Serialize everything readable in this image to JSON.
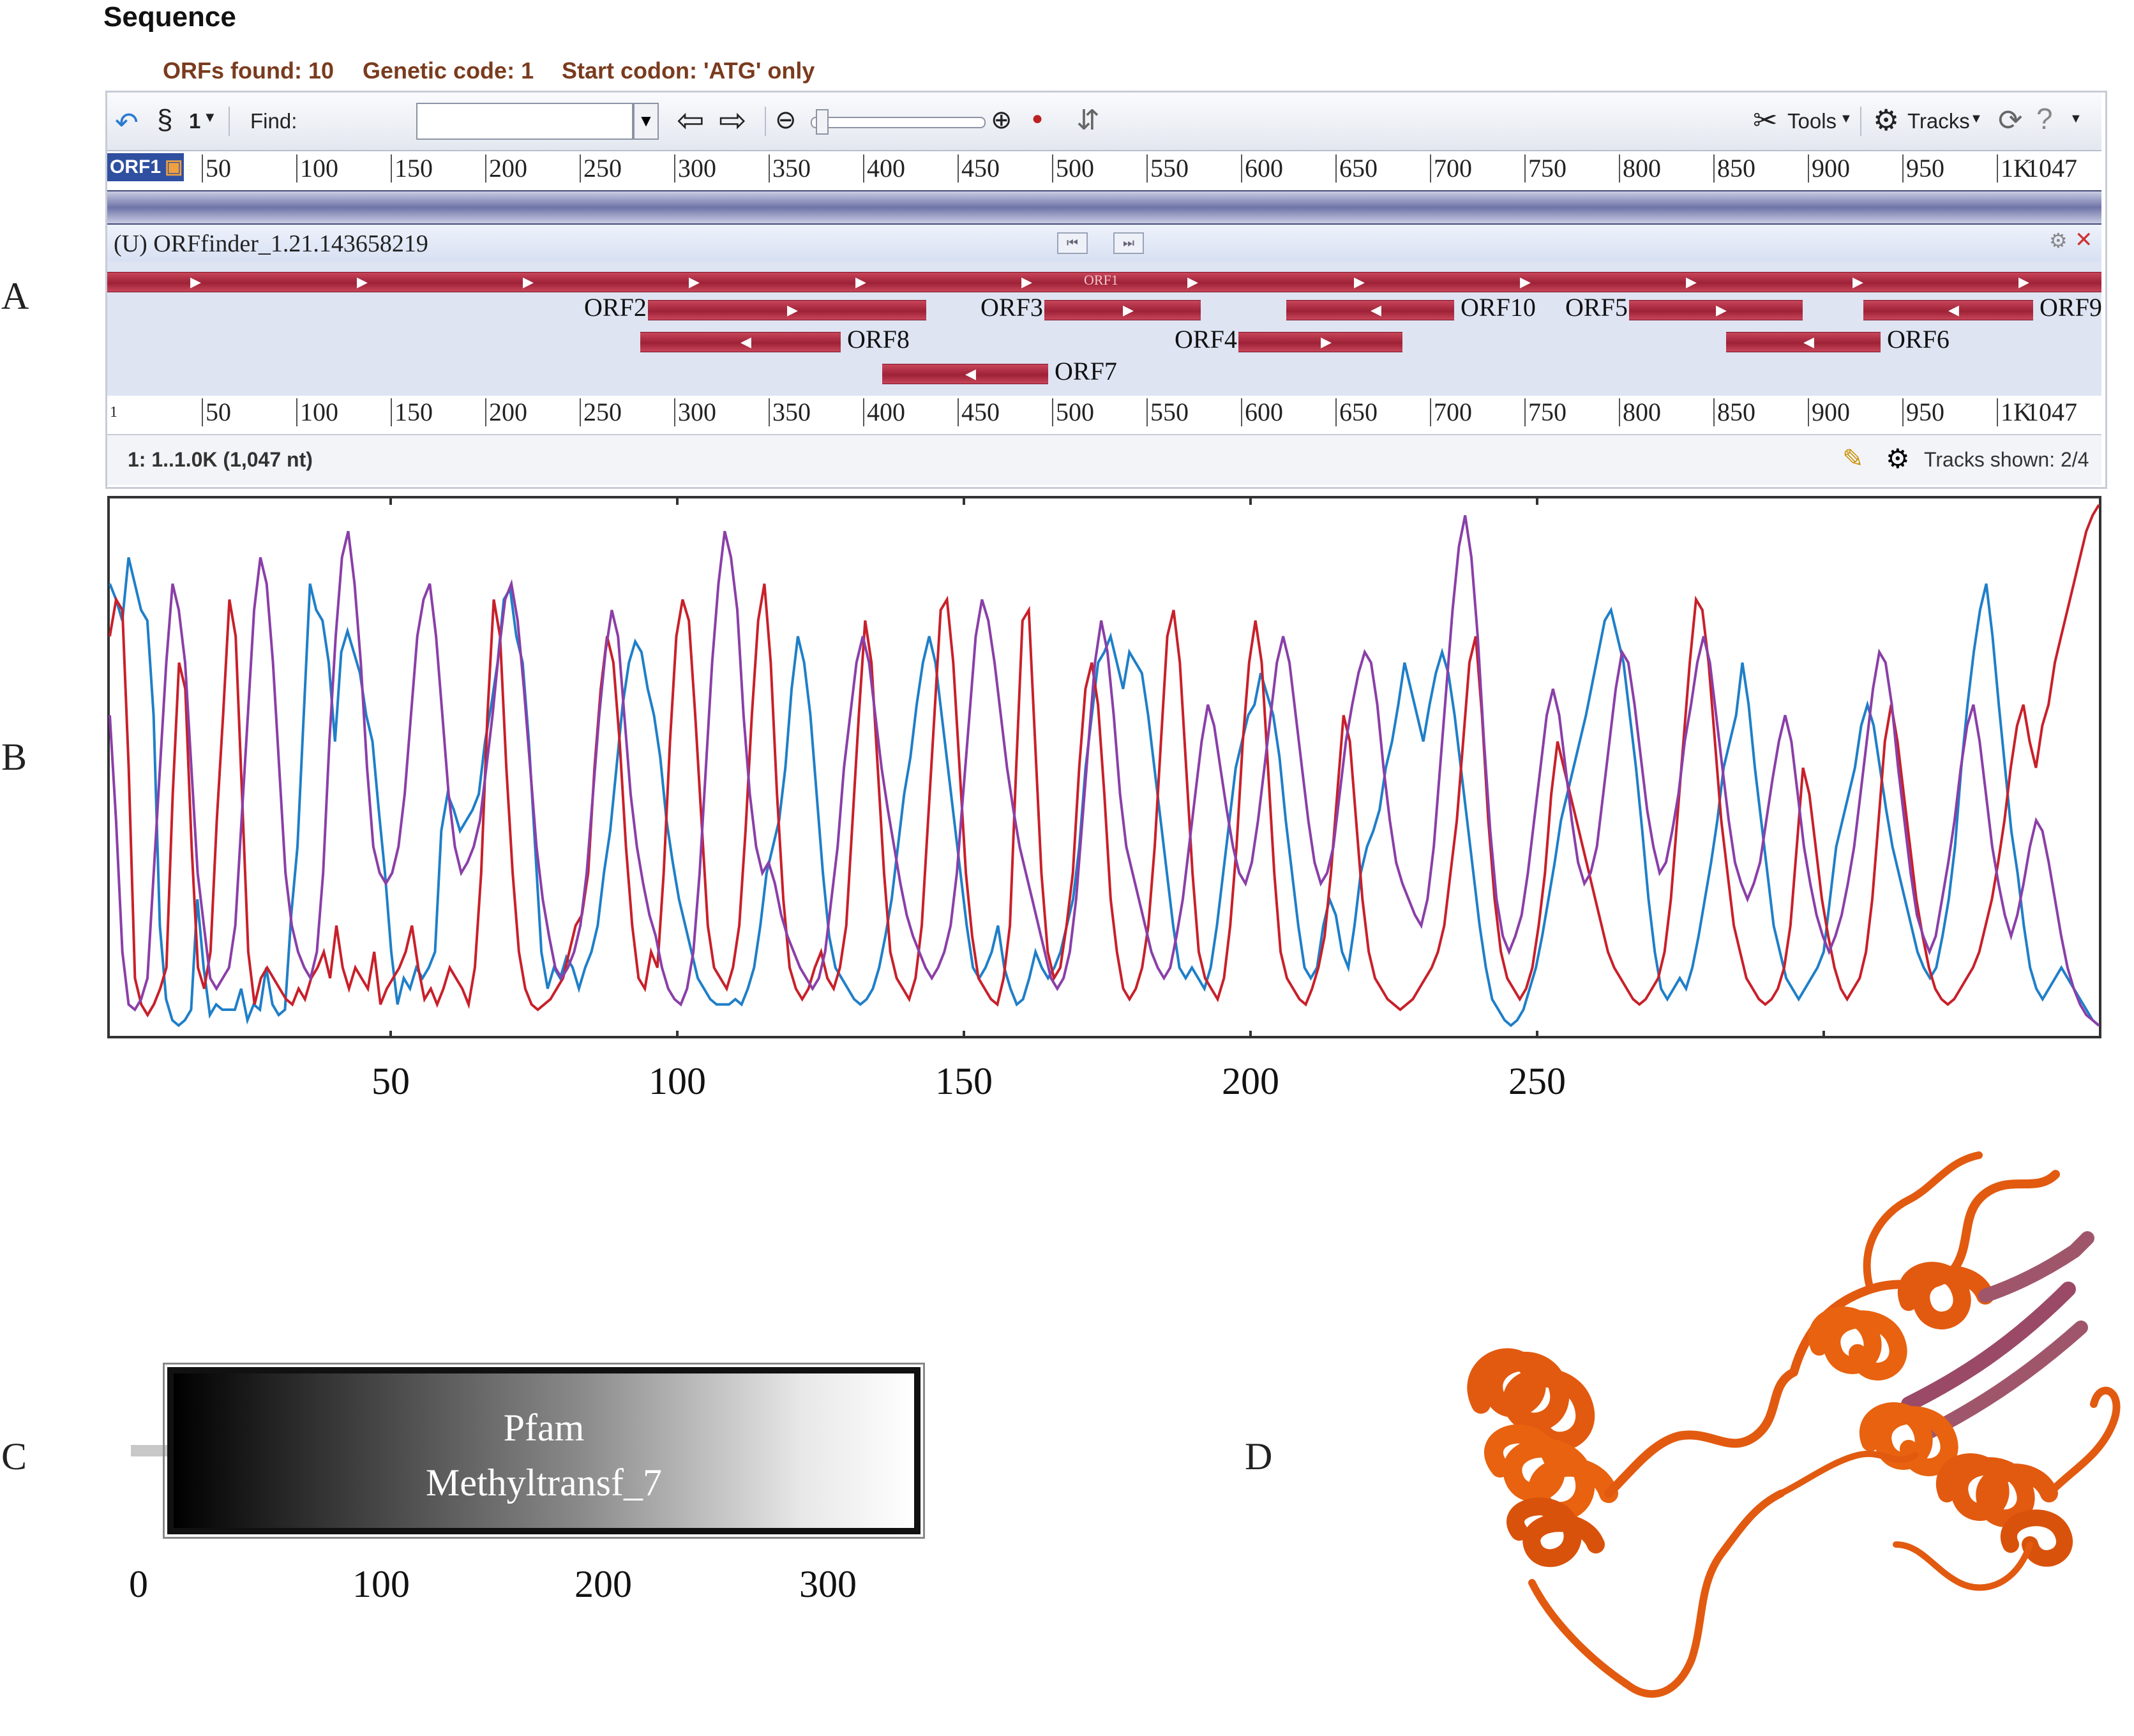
{
  "panel_letters": {
    "a": "A",
    "b": "B",
    "c": "C",
    "d": "D"
  },
  "viewer": {
    "title": "Sequence",
    "orfs_found": "ORFs found: 10",
    "genetic_code": "Genetic code: 1",
    "start_codon": "Start codon: 'ATG' only",
    "toolbar": {
      "strand_label": "1",
      "find_label": "Find:",
      "find_value": "",
      "tools_label": "Tools",
      "tracks_label": "Tracks"
    },
    "ruler_tag": "ORF1",
    "ruler_ticks": [
      "50",
      "100",
      "150",
      "200",
      "250",
      "300",
      "350",
      "400",
      "450",
      "500",
      "550",
      "600",
      "650",
      "700",
      "750",
      "800",
      "850",
      "900",
      "950",
      "1K"
    ],
    "ruler_end": "1047",
    "ruler_start": "1",
    "track_title": "(U) ORFfinder_1.21.143658219",
    "orf1_label": "ORF1",
    "orfs": [
      {
        "name": "ORF1",
        "start": 1,
        "end": 1047,
        "dir": "fwd",
        "row": 0
      },
      {
        "name": "ORF2",
        "start": 285,
        "end": 430,
        "dir": "fwd",
        "row": 1
      },
      {
        "name": "ORF3",
        "start": 493,
        "end": 574,
        "dir": "fwd",
        "row": 1
      },
      {
        "name": "ORF10",
        "start": 620,
        "end": 707,
        "dir": "rev",
        "row": 1
      },
      {
        "name": "ORF5",
        "start": 800,
        "end": 890,
        "dir": "fwd",
        "row": 1
      },
      {
        "name": "ORF9",
        "start": 923,
        "end": 1011,
        "dir": "rev",
        "row": 1
      },
      {
        "name": "ORF8",
        "start": 281,
        "end": 385,
        "dir": "rev",
        "row": 2
      },
      {
        "name": "ORF4",
        "start": 595,
        "end": 680,
        "dir": "fwd",
        "row": 2
      },
      {
        "name": "ORF6",
        "start": 851,
        "end": 931,
        "dir": "rev",
        "row": 2
      },
      {
        "name": "ORF7",
        "start": 408,
        "end": 494,
        "dir": "rev",
        "row": 3
      }
    ],
    "status_range": "1: 1..1.0K (1,047 nt)",
    "tracks_shown": "Tracks shown: 2/4"
  },
  "chart_data": {
    "type": "line",
    "x_ticks": [
      50,
      100,
      150,
      200,
      250
    ],
    "xlim": [
      1,
      348
    ],
    "ylim": [
      0,
      1
    ],
    "series": [
      {
        "color": "#1f7fc8",
        "values": [
          0.85,
          0.82,
          0.78,
          0.9,
          0.85,
          0.8,
          0.78,
          0.6,
          0.2,
          0.06,
          0.02,
          0.01,
          0.02,
          0.04,
          0.25,
          0.12,
          0.03,
          0.05,
          0.04,
          0.04,
          0.04,
          0.08,
          0.02,
          0.05,
          0.04,
          0.12,
          0.05,
          0.03,
          0.04,
          0.22,
          0.35,
          0.6,
          0.85,
          0.8,
          0.78,
          0.7,
          0.55,
          0.72,
          0.76,
          0.72,
          0.68,
          0.6,
          0.55,
          0.42,
          0.3,
          0.15,
          0.05,
          0.1,
          0.08,
          0.12,
          0.1,
          0.12,
          0.15,
          0.38,
          0.45,
          0.42,
          0.38,
          0.4,
          0.42,
          0.45,
          0.55,
          0.62,
          0.7,
          0.82,
          0.84,
          0.75,
          0.7,
          0.55,
          0.35,
          0.15,
          0.08,
          0.12,
          0.1,
          0.14,
          0.12,
          0.08,
          0.12,
          0.15,
          0.2,
          0.3,
          0.38,
          0.5,
          0.62,
          0.7,
          0.74,
          0.72,
          0.65,
          0.6,
          0.52,
          0.4,
          0.32,
          0.25,
          0.2,
          0.15,
          0.1,
          0.08,
          0.06,
          0.05,
          0.05,
          0.05,
          0.06,
          0.05,
          0.08,
          0.12,
          0.2,
          0.3,
          0.35,
          0.4,
          0.5,
          0.65,
          0.75,
          0.7,
          0.6,
          0.45,
          0.3,
          0.18,
          0.12,
          0.1,
          0.08,
          0.06,
          0.05,
          0.06,
          0.08,
          0.12,
          0.18,
          0.25,
          0.35,
          0.45,
          0.52,
          0.62,
          0.7,
          0.75,
          0.7,
          0.6,
          0.5,
          0.4,
          0.3,
          0.2,
          0.12,
          0.1,
          0.12,
          0.15,
          0.2,
          0.12,
          0.08,
          0.05,
          0.06,
          0.1,
          0.15,
          0.12,
          0.1,
          0.12,
          0.15,
          0.2,
          0.25,
          0.35,
          0.5,
          0.6,
          0.7,
          0.72,
          0.75,
          0.7,
          0.65,
          0.72,
          0.7,
          0.68,
          0.6,
          0.5,
          0.4,
          0.3,
          0.2,
          0.12,
          0.1,
          0.12,
          0.1,
          0.08,
          0.12,
          0.2,
          0.3,
          0.4,
          0.5,
          0.55,
          0.6,
          0.62,
          0.68,
          0.64,
          0.6,
          0.52,
          0.4,
          0.3,
          0.2,
          0.12,
          0.1,
          0.12,
          0.2,
          0.25,
          0.22,
          0.15,
          0.12,
          0.2,
          0.3,
          0.35,
          0.38,
          0.42,
          0.5,
          0.55,
          0.62,
          0.7,
          0.65,
          0.6,
          0.55,
          0.62,
          0.68,
          0.72,
          0.68,
          0.6,
          0.5,
          0.4,
          0.3,
          0.2,
          0.12,
          0.06,
          0.04,
          0.02,
          0.01,
          0.02,
          0.04,
          0.08,
          0.12,
          0.18,
          0.25,
          0.32,
          0.4,
          0.45,
          0.5,
          0.55,
          0.6,
          0.66,
          0.72,
          0.78,
          0.8,
          0.75,
          0.7,
          0.6,
          0.5,
          0.38,
          0.25,
          0.15,
          0.08,
          0.06,
          0.08,
          0.1,
          0.08,
          0.12,
          0.18,
          0.25,
          0.32,
          0.4,
          0.5,
          0.55,
          0.6,
          0.7,
          0.62,
          0.5,
          0.4,
          0.3,
          0.2,
          0.15,
          0.1,
          0.08,
          0.06,
          0.08,
          0.1,
          0.12,
          0.15,
          0.25,
          0.35,
          0.4,
          0.45,
          0.5,
          0.58,
          0.62,
          0.58,
          0.5,
          0.42,
          0.35,
          0.3,
          0.25,
          0.2,
          0.15,
          0.12,
          0.1,
          0.12,
          0.18,
          0.25,
          0.35,
          0.5,
          0.62,
          0.72,
          0.8,
          0.85,
          0.75,
          0.62,
          0.5,
          0.38,
          0.3,
          0.2,
          0.12,
          0.08,
          0.06,
          0.08,
          0.1,
          0.12,
          0.1,
          0.08,
          0.06,
          0.04,
          0.02,
          0.01
        ]
      },
      {
        "color": "#c8202a",
        "values": [
          0.75,
          0.82,
          0.8,
          0.5,
          0.1,
          0.05,
          0.03,
          0.05,
          0.08,
          0.12,
          0.45,
          0.7,
          0.65,
          0.35,
          0.12,
          0.08,
          0.15,
          0.4,
          0.6,
          0.82,
          0.75,
          0.45,
          0.15,
          0.05,
          0.1,
          0.12,
          0.1,
          0.08,
          0.06,
          0.05,
          0.08,
          0.06,
          0.1,
          0.12,
          0.15,
          0.1,
          0.2,
          0.12,
          0.08,
          0.12,
          0.1,
          0.08,
          0.15,
          0.05,
          0.08,
          0.1,
          0.12,
          0.15,
          0.2,
          0.12,
          0.06,
          0.08,
          0.05,
          0.08,
          0.12,
          0.1,
          0.08,
          0.05,
          0.12,
          0.3,
          0.6,
          0.82,
          0.75,
          0.5,
          0.3,
          0.15,
          0.08,
          0.05,
          0.04,
          0.05,
          0.06,
          0.08,
          0.1,
          0.15,
          0.2,
          0.22,
          0.3,
          0.5,
          0.65,
          0.75,
          0.7,
          0.55,
          0.35,
          0.2,
          0.1,
          0.08,
          0.15,
          0.12,
          0.3,
          0.55,
          0.75,
          0.82,
          0.78,
          0.6,
          0.4,
          0.2,
          0.12,
          0.1,
          0.08,
          0.12,
          0.2,
          0.38,
          0.6,
          0.78,
          0.85,
          0.7,
          0.45,
          0.25,
          0.12,
          0.08,
          0.06,
          0.08,
          0.12,
          0.15,
          0.1,
          0.08,
          0.12,
          0.2,
          0.4,
          0.6,
          0.78,
          0.7,
          0.5,
          0.3,
          0.15,
          0.1,
          0.08,
          0.06,
          0.1,
          0.2,
          0.4,
          0.6,
          0.8,
          0.82,
          0.7,
          0.5,
          0.3,
          0.18,
          0.1,
          0.08,
          0.06,
          0.05,
          0.1,
          0.2,
          0.5,
          0.78,
          0.8,
          0.55,
          0.3,
          0.15,
          0.1,
          0.12,
          0.2,
          0.3,
          0.5,
          0.65,
          0.7,
          0.62,
          0.45,
          0.25,
          0.15,
          0.08,
          0.06,
          0.08,
          0.12,
          0.2,
          0.35,
          0.55,
          0.75,
          0.8,
          0.7,
          0.5,
          0.3,
          0.15,
          0.1,
          0.08,
          0.06,
          0.1,
          0.2,
          0.35,
          0.55,
          0.7,
          0.78,
          0.7,
          0.5,
          0.3,
          0.15,
          0.1,
          0.08,
          0.06,
          0.05,
          0.08,
          0.12,
          0.18,
          0.3,
          0.45,
          0.6,
          0.55,
          0.4,
          0.25,
          0.15,
          0.1,
          0.08,
          0.06,
          0.05,
          0.04,
          0.05,
          0.06,
          0.08,
          0.1,
          0.12,
          0.15,
          0.2,
          0.3,
          0.4,
          0.55,
          0.7,
          0.75,
          0.6,
          0.4,
          0.25,
          0.15,
          0.1,
          0.08,
          0.06,
          0.08,
          0.12,
          0.2,
          0.3,
          0.45,
          0.55,
          0.5,
          0.45,
          0.4,
          0.35,
          0.3,
          0.25,
          0.2,
          0.15,
          0.12,
          0.1,
          0.08,
          0.06,
          0.05,
          0.06,
          0.08,
          0.1,
          0.15,
          0.25,
          0.4,
          0.55,
          0.7,
          0.82,
          0.8,
          0.7,
          0.55,
          0.4,
          0.3,
          0.2,
          0.15,
          0.1,
          0.08,
          0.06,
          0.05,
          0.06,
          0.08,
          0.12,
          0.2,
          0.35,
          0.5,
          0.45,
          0.35,
          0.25,
          0.18,
          0.12,
          0.08,
          0.06,
          0.08,
          0.1,
          0.15,
          0.25,
          0.4,
          0.55,
          0.62,
          0.55,
          0.45,
          0.35,
          0.25,
          0.18,
          0.12,
          0.08,
          0.06,
          0.05,
          0.06,
          0.08,
          0.1,
          0.12,
          0.15,
          0.2,
          0.25,
          0.32,
          0.4,
          0.5,
          0.58,
          0.62,
          0.55,
          0.5,
          0.58,
          0.62,
          0.7,
          0.75,
          0.8,
          0.85,
          0.9,
          0.95,
          0.98,
          1.0
        ]
      },
      {
        "color": "#8a3fa8",
        "values": [
          0.6,
          0.4,
          0.15,
          0.05,
          0.04,
          0.06,
          0.1,
          0.3,
          0.5,
          0.7,
          0.85,
          0.8,
          0.7,
          0.5,
          0.3,
          0.2,
          0.1,
          0.08,
          0.1,
          0.12,
          0.2,
          0.4,
          0.6,
          0.8,
          0.9,
          0.85,
          0.7,
          0.5,
          0.3,
          0.2,
          0.15,
          0.12,
          0.1,
          0.15,
          0.3,
          0.55,
          0.75,
          0.9,
          0.95,
          0.85,
          0.7,
          0.5,
          0.35,
          0.3,
          0.28,
          0.3,
          0.35,
          0.45,
          0.6,
          0.75,
          0.82,
          0.85,
          0.75,
          0.6,
          0.45,
          0.35,
          0.3,
          0.32,
          0.35,
          0.4,
          0.5,
          0.6,
          0.72,
          0.82,
          0.85,
          0.78,
          0.65,
          0.5,
          0.35,
          0.25,
          0.18,
          0.12,
          0.1,
          0.12,
          0.15,
          0.2,
          0.3,
          0.45,
          0.6,
          0.72,
          0.8,
          0.75,
          0.6,
          0.45,
          0.35,
          0.28,
          0.22,
          0.18,
          0.12,
          0.08,
          0.06,
          0.05,
          0.08,
          0.15,
          0.3,
          0.5,
          0.7,
          0.85,
          0.95,
          0.9,
          0.8,
          0.6,
          0.45,
          0.35,
          0.3,
          0.32,
          0.28,
          0.22,
          0.18,
          0.15,
          0.12,
          0.1,
          0.08,
          0.1,
          0.15,
          0.25,
          0.35,
          0.5,
          0.6,
          0.7,
          0.75,
          0.7,
          0.6,
          0.5,
          0.42,
          0.35,
          0.28,
          0.22,
          0.18,
          0.15,
          0.12,
          0.1,
          0.12,
          0.15,
          0.2,
          0.3,
          0.45,
          0.6,
          0.75,
          0.82,
          0.78,
          0.7,
          0.6,
          0.5,
          0.42,
          0.35,
          0.3,
          0.25,
          0.2,
          0.15,
          0.1,
          0.08,
          0.1,
          0.15,
          0.25,
          0.4,
          0.55,
          0.7,
          0.78,
          0.72,
          0.6,
          0.45,
          0.35,
          0.3,
          0.25,
          0.2,
          0.15,
          0.12,
          0.1,
          0.12,
          0.18,
          0.25,
          0.35,
          0.45,
          0.55,
          0.62,
          0.58,
          0.5,
          0.42,
          0.35,
          0.3,
          0.28,
          0.32,
          0.4,
          0.5,
          0.6,
          0.7,
          0.75,
          0.7,
          0.6,
          0.5,
          0.4,
          0.32,
          0.28,
          0.3,
          0.35,
          0.45,
          0.55,
          0.62,
          0.68,
          0.72,
          0.7,
          0.62,
          0.5,
          0.4,
          0.32,
          0.28,
          0.25,
          0.22,
          0.2,
          0.25,
          0.35,
          0.5,
          0.65,
          0.8,
          0.92,
          0.98,
          0.9,
          0.75,
          0.55,
          0.38,
          0.25,
          0.18,
          0.15,
          0.18,
          0.22,
          0.3,
          0.4,
          0.5,
          0.6,
          0.65,
          0.6,
          0.5,
          0.4,
          0.32,
          0.28,
          0.3,
          0.35,
          0.45,
          0.55,
          0.65,
          0.72,
          0.7,
          0.62,
          0.52,
          0.42,
          0.35,
          0.3,
          0.32,
          0.38,
          0.45,
          0.55,
          0.62,
          0.7,
          0.75,
          0.7,
          0.6,
          0.5,
          0.4,
          0.32,
          0.28,
          0.25,
          0.28,
          0.32,
          0.4,
          0.48,
          0.55,
          0.6,
          0.55,
          0.45,
          0.35,
          0.28,
          0.22,
          0.18,
          0.15,
          0.18,
          0.22,
          0.28,
          0.35,
          0.45,
          0.55,
          0.65,
          0.72,
          0.7,
          0.62,
          0.5,
          0.4,
          0.3,
          0.22,
          0.18,
          0.15,
          0.18,
          0.25,
          0.32,
          0.4,
          0.5,
          0.58,
          0.62,
          0.55,
          0.45,
          0.35,
          0.28,
          0.22,
          0.18,
          0.22,
          0.28,
          0.35,
          0.4,
          0.38,
          0.32,
          0.25,
          0.18,
          0.12,
          0.08,
          0.05,
          0.03,
          0.02,
          0.01
        ]
      }
    ]
  },
  "domain": {
    "line1": "Pfam",
    "line2": "Methyltransf_7",
    "axis_ticks": [
      "0",
      "100",
      "200",
      "300"
    ]
  }
}
